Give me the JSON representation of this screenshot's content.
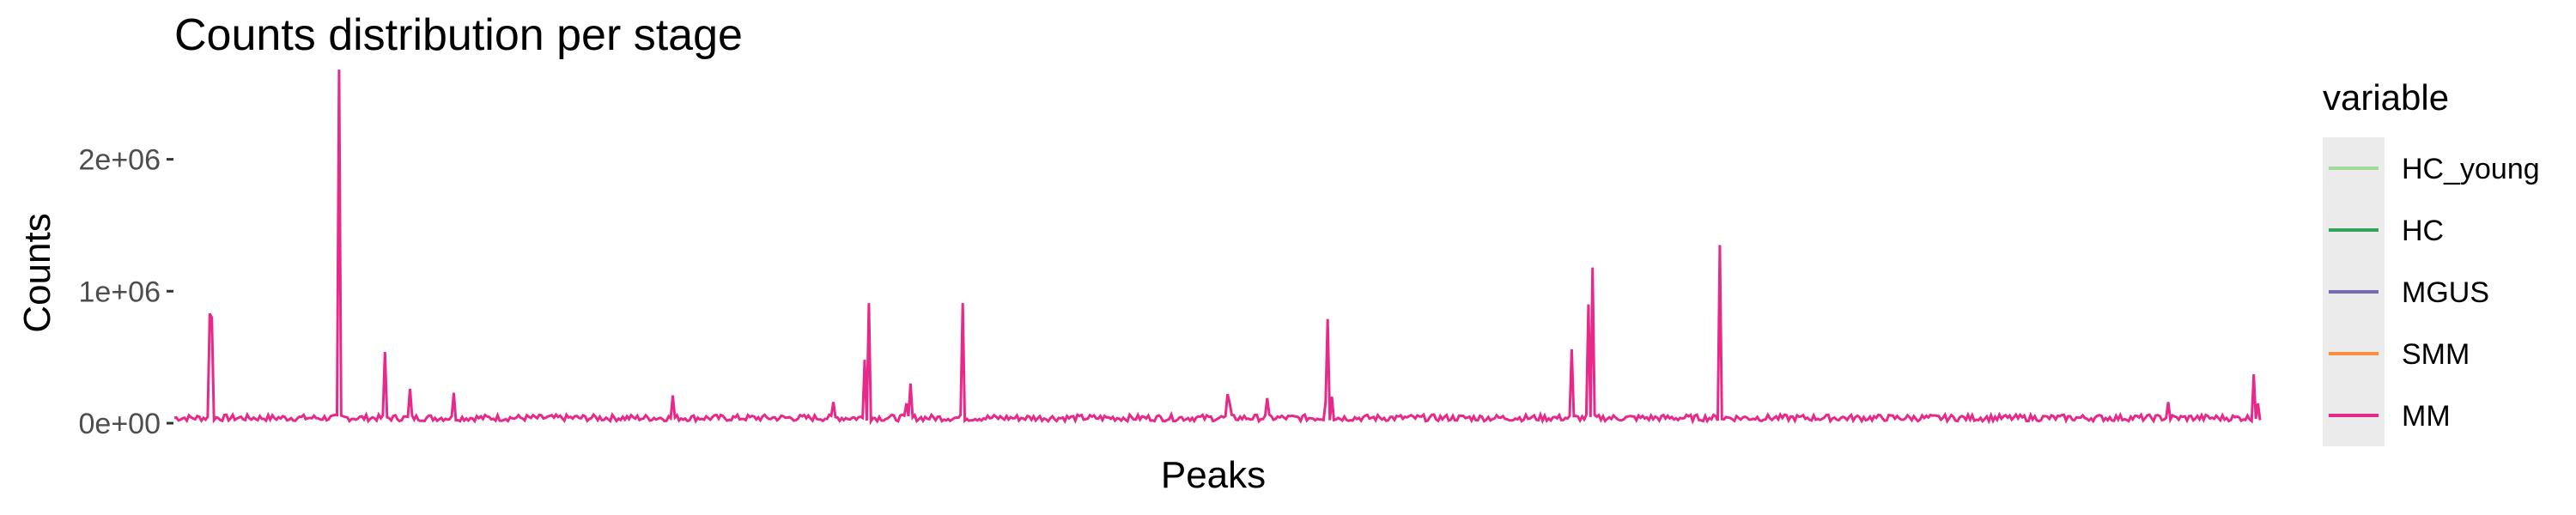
{
  "chart_data": {
    "type": "line",
    "title": "Counts distribution per stage",
    "xlabel": "Peaks",
    "ylabel": "Counts",
    "ylim": [
      0,
      2700000
    ],
    "yticks": [
      {
        "value": 0,
        "label": "0e+00"
      },
      {
        "value": 1000000,
        "label": "1e+06"
      },
      {
        "value": 2000000,
        "label": "2e+06"
      }
    ],
    "x_tick_labels": "none",
    "xlim": [
      0,
      1000
    ],
    "grid": false,
    "legend": {
      "title": "variable",
      "position": "right",
      "entries": [
        {
          "name": "HC_young",
          "color": "#a1d99b"
        },
        {
          "name": "HC",
          "color": "#31a354"
        },
        {
          "name": "MGUS",
          "color": "#756bb1"
        },
        {
          "name": "SMM",
          "color": "#fd8d3c"
        },
        {
          "name": "MM",
          "color": "#e7298a"
        }
      ]
    },
    "series": [
      {
        "name": "MM",
        "color": "#e7298a",
        "baseline": 40000,
        "baseline_variation": 25000,
        "peaks": [
          {
            "x": 17,
            "y": 830000
          },
          {
            "x": 18,
            "y": 800000
          },
          {
            "x": 79,
            "y": 2680000
          },
          {
            "x": 101,
            "y": 540000
          },
          {
            "x": 113,
            "y": 260000
          },
          {
            "x": 134,
            "y": 230000
          },
          {
            "x": 239,
            "y": 210000
          },
          {
            "x": 316,
            "y": 160000
          },
          {
            "x": 331,
            "y": 480000
          },
          {
            "x": 333,
            "y": 910000
          },
          {
            "x": 351,
            "y": 150000
          },
          {
            "x": 353,
            "y": 300000
          },
          {
            "x": 378,
            "y": 910000
          },
          {
            "x": 506,
            "y": 150000
          },
          {
            "x": 505,
            "y": 220000
          },
          {
            "x": 524,
            "y": 190000
          },
          {
            "x": 552,
            "y": 160000
          },
          {
            "x": 553,
            "y": 790000
          },
          {
            "x": 555,
            "y": 200000
          },
          {
            "x": 670,
            "y": 560000
          },
          {
            "x": 678,
            "y": 900000
          },
          {
            "x": 680,
            "y": 1180000
          },
          {
            "x": 741,
            "y": 1350000
          },
          {
            "x": 956,
            "y": 160000
          },
          {
            "x": 997,
            "y": 370000
          },
          {
            "x": 999,
            "y": 150000
          }
        ]
      }
    ]
  }
}
